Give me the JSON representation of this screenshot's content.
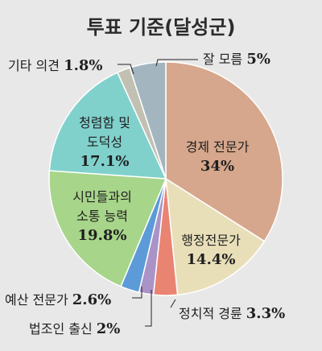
{
  "chart_data": {
    "type": "pie",
    "title": "투표 기준(달성군)",
    "slices": [
      {
        "label": "경제 전문가",
        "value_label": "34%",
        "value": 34,
        "color": "#d6a78c"
      },
      {
        "label": "행정전문가",
        "value_label": "14.4%",
        "value": 14.4,
        "color": "#e8dfb9"
      },
      {
        "label": "정치적 경륜",
        "value_label": "3.3%",
        "value": 3.3,
        "color": "#e98472"
      },
      {
        "label": "법조인 출신",
        "value_label": "2%",
        "value": 2,
        "color": "#a993c7"
      },
      {
        "label": "예산 전문가",
        "value_label": "2.6%",
        "value": 2.6,
        "color": "#5c9bd8"
      },
      {
        "label": "시민들과의 소통 능력",
        "value_label": "19.8%",
        "value": 19.8,
        "color": "#a7d58a"
      },
      {
        "label": "청렴함 및 도덕성",
        "value_label": "17.1%",
        "value": 17.1,
        "color": "#80d1cc"
      },
      {
        "label": "기타 의견",
        "value_label": "1.8%",
        "value": 1.8,
        "color": "#c2c0b3"
      },
      {
        "label": "잘 모름",
        "value_label": "5%",
        "value": 5,
        "color": "#a3b6c0"
      }
    ]
  }
}
